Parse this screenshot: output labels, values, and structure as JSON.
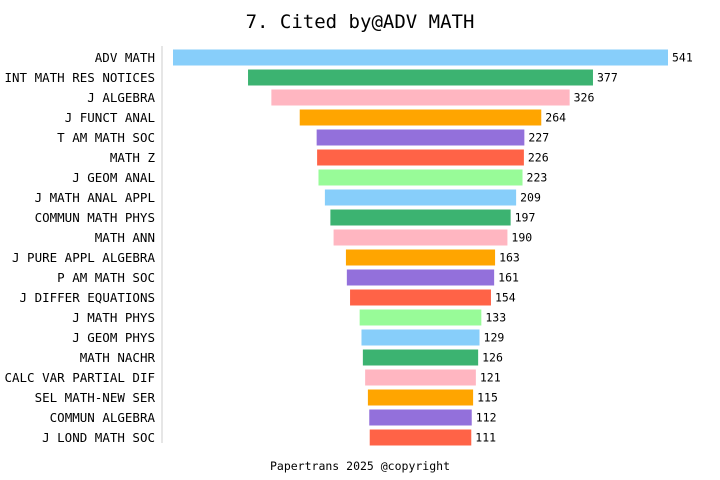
{
  "chart_data": {
    "type": "bar",
    "orientation": "horizontal",
    "style": "centered-funnel",
    "title": "7. Cited by@ADV MATH",
    "xlabel": "",
    "ylabel": "",
    "grid": false,
    "categories": [
      "ADV MATH",
      "INT MATH RES NOTICES",
      "J ALGEBRA",
      "J FUNCT ANAL",
      "T AM MATH SOC",
      "MATH Z",
      "J GEOM ANAL",
      "J MATH ANAL APPL",
      "COMMUN MATH PHYS",
      "MATH ANN",
      "J PURE APPL ALGEBRA",
      "P AM MATH SOC",
      "J DIFFER EQUATIONS",
      "J MATH PHYS",
      "J GEOM PHYS",
      "MATH NACHR",
      "CALC VAR PARTIAL DIF",
      "SEL MATH-NEW SER",
      "COMMUN ALGEBRA",
      "J LOND MATH SOC"
    ],
    "values": [
      541,
      377,
      326,
      264,
      227,
      226,
      223,
      209,
      197,
      190,
      163,
      161,
      154,
      133,
      129,
      126,
      121,
      115,
      112,
      111
    ],
    "colors": [
      "#87CEFA",
      "#3CB371",
      "#FFB6C1",
      "#FFA500",
      "#9370DB",
      "#FF6347",
      "#98FB98"
    ],
    "axis_color": "#cccccc"
  },
  "footer": {
    "text": "Papertrans 2025 @copyright"
  }
}
